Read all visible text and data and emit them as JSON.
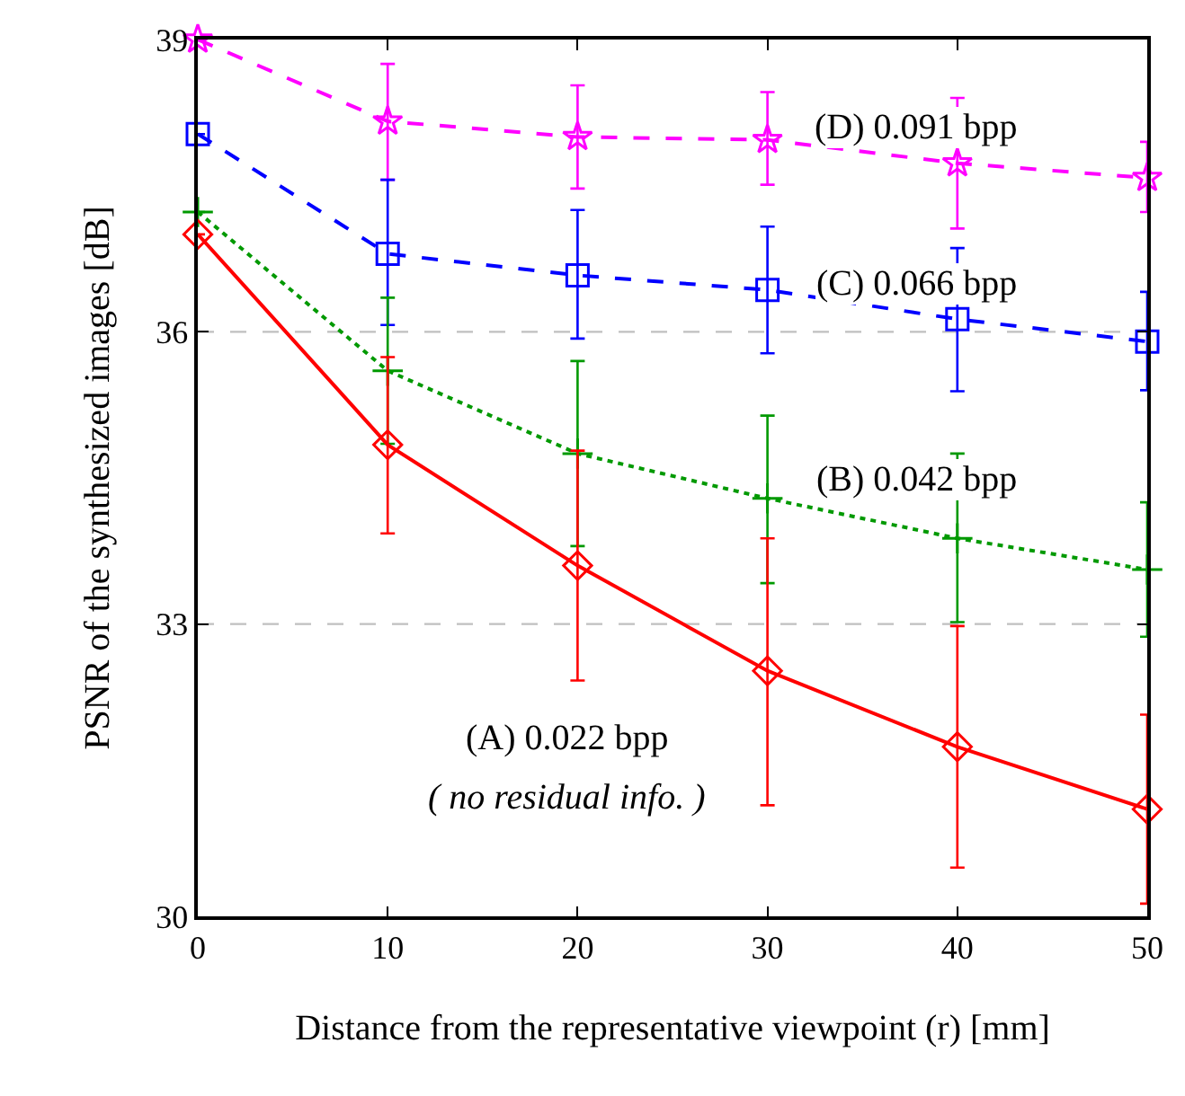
{
  "chart_data": {
    "type": "line",
    "xlabel": "Distance from the representative viewpoint (r) [mm]",
    "ylabel": "PSNR of the synthesized images [dB]",
    "x": [
      0,
      10,
      20,
      30,
      40,
      50
    ],
    "series": [
      {
        "name": "(D) 0.091 bpp",
        "color": "#ff00ff",
        "marker": "star",
        "line_style": "dashed",
        "values": [
          39.0,
          38.16,
          38.0,
          37.97,
          37.73,
          37.58
        ],
        "errors": [
          null,
          [
            37.56,
            38.75
          ],
          [
            37.47,
            38.53
          ],
          [
            37.51,
            38.46
          ],
          [
            37.06,
            38.4
          ],
          [
            37.23,
            37.95
          ]
        ]
      },
      {
        "name": "(C) 0.066 bpp",
        "color": "#0000ff",
        "marker": "square",
        "line_style": "dashed",
        "values": [
          38.03,
          36.8,
          36.58,
          36.43,
          36.13,
          35.9
        ],
        "errors": [
          null,
          [
            36.07,
            37.56
          ],
          [
            35.93,
            37.25
          ],
          [
            35.78,
            37.08
          ],
          [
            35.39,
            36.86
          ],
          [
            35.4,
            36.41
          ]
        ]
      },
      {
        "name": "(B) 0.042 bpp",
        "color": "#009900",
        "marker": "cross",
        "line_style": "dotted",
        "values": [
          37.23,
          35.6,
          34.75,
          34.29,
          33.88,
          33.56
        ],
        "errors": [
          null,
          [
            34.85,
            36.35
          ],
          [
            33.8,
            35.7
          ],
          [
            33.42,
            35.14
          ],
          [
            33.02,
            34.75
          ],
          [
            32.87,
            34.25
          ]
        ]
      },
      {
        "name": "(A) 0.022 bpp",
        "color": "#ff0000",
        "marker": "diamond",
        "line_style": "solid",
        "values": [
          37.0,
          34.84,
          33.6,
          32.52,
          31.74,
          31.1
        ],
        "errors": [
          null,
          [
            33.93,
            35.74
          ],
          [
            32.42,
            34.78
          ],
          [
            31.14,
            33.88
          ],
          [
            30.5,
            32.98
          ],
          [
            30.13,
            32.07
          ]
        ]
      }
    ],
    "annotations": [
      "( no residual info. )"
    ],
    "xlim": [
      0,
      50
    ],
    "xticks": [
      0,
      10,
      20,
      30,
      40,
      50
    ],
    "ylim": [
      30,
      39
    ],
    "yticks": [
      30,
      33,
      36,
      39
    ],
    "ref_lines": [
      {
        "axis": "y",
        "value": 33,
        "color": "#c0c0c0",
        "line_style": "dashed"
      },
      {
        "axis": "y",
        "value": 36,
        "color": "#c0c0c0",
        "line_style": "dashed"
      }
    ],
    "grid": false,
    "legend": false
  }
}
